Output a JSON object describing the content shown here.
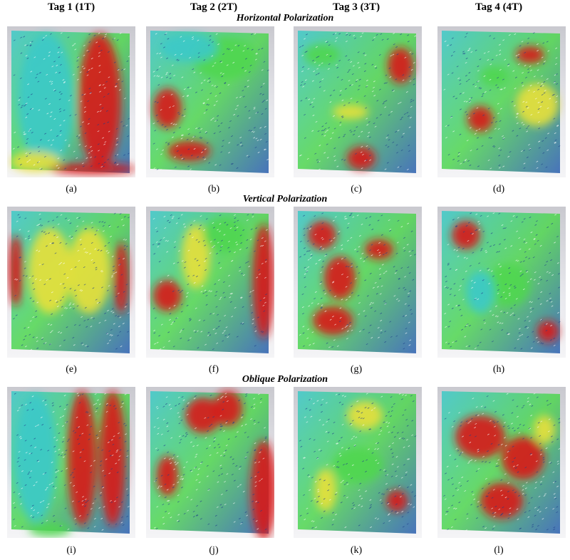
{
  "columns": [
    "Tag 1 (1T)",
    "Tag 2 (2T)",
    "Tag 3 (3T)",
    "Tag 4 (4T)"
  ],
  "rows": [
    {
      "title": "Horizontal Polarization",
      "captions": [
        "(a)",
        "(b)",
        "(c)",
        "(d)"
      ]
    },
    {
      "title": "Vertical Polarization",
      "captions": [
        "(e)",
        "(f)",
        "(g)",
        "(h)"
      ]
    },
    {
      "title": "Oblique Polarization",
      "captions": [
        "(i)",
        "(j)",
        "(k)",
        "(l)"
      ]
    }
  ],
  "colors": {
    "background": "#ffffff",
    "field_low": "#2a5db0",
    "field_mid_low": "#3cc9c9",
    "field_mid": "#4fd64f",
    "field_mid_high": "#e8e03a",
    "field_high": "#d81a14"
  }
}
